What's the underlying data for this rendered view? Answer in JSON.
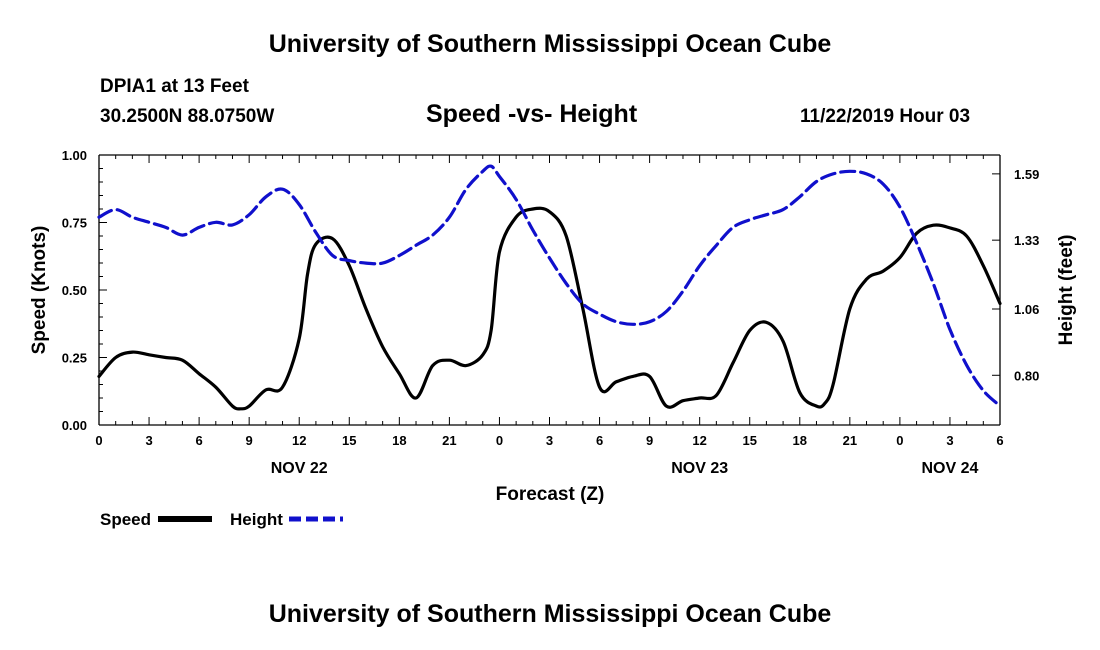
{
  "header": {
    "title_top": "University of Southern Mississippi Ocean Cube",
    "station": "DPIA1 at 13 Feet",
    "location": "30.2500N 88.0750W",
    "datetime": "11/22/2019 Hour 03",
    "title_bottom": "University of Southern Mississippi Ocean Cube"
  },
  "legend": {
    "speed_label": "Speed",
    "height_label": "Height"
  },
  "colors": {
    "speed": "#000000",
    "height": "#1010cc"
  },
  "chart_data": {
    "type": "line",
    "title": "Speed -vs- Height",
    "xlabel": "Forecast (Z)",
    "ylabel": "Speed (Knots)",
    "y2label": "Height (feet)",
    "xlim": [
      0,
      54
    ],
    "ylim": [
      0,
      1
    ],
    "y2lim": [
      0.605,
      1.664
    ],
    "x_ticks": [
      0,
      3,
      6,
      9,
      12,
      15,
      18,
      21,
      24,
      27,
      30,
      33,
      36,
      39,
      42,
      45,
      48,
      51,
      54
    ],
    "x_tick_labels": [
      "0",
      "3",
      "6",
      "9",
      "12",
      "15",
      "18",
      "21",
      "0",
      "3",
      "6",
      "9",
      "12",
      "15",
      "18",
      "21",
      "0",
      "3",
      "6"
    ],
    "y_ticks": [
      0,
      0.25,
      0.5,
      0.75,
      1.0
    ],
    "y_tick_labels": [
      "0.00",
      "0.25",
      "0.50",
      "0.75",
      "1.00"
    ],
    "y2_ticks": [
      0.8,
      1.06,
      1.33,
      1.59
    ],
    "y2_tick_labels": [
      "0.80",
      "1.06",
      "1.33",
      "1.59"
    ],
    "date_labels": [
      {
        "x": 12,
        "label": "NOV 22"
      },
      {
        "x": 36,
        "label": "NOV 23"
      },
      {
        "x": 51,
        "label": "NOV 24"
      }
    ],
    "series": [
      {
        "name": "Speed",
        "axis": "left",
        "x": [
          0,
          1,
          2,
          3,
          4,
          5,
          6,
          7,
          8,
          8.5,
          9,
          10,
          11,
          12,
          12.5,
          13,
          14,
          15,
          16,
          17,
          18,
          19,
          20,
          21,
          22,
          23,
          23.5,
          24,
          25,
          26,
          27,
          28,
          29,
          30,
          31,
          32,
          33,
          34,
          35,
          36,
          37,
          38,
          39,
          40,
          41,
          42,
          43,
          43.5,
          44,
          45,
          46,
          47,
          48,
          49,
          50,
          51,
          52,
          53,
          54
        ],
        "y": [
          0.18,
          0.25,
          0.27,
          0.26,
          0.25,
          0.24,
          0.19,
          0.14,
          0.07,
          0.06,
          0.07,
          0.13,
          0.14,
          0.32,
          0.56,
          0.67,
          0.69,
          0.59,
          0.43,
          0.29,
          0.19,
          0.1,
          0.22,
          0.24,
          0.22,
          0.26,
          0.35,
          0.64,
          0.77,
          0.8,
          0.79,
          0.7,
          0.43,
          0.14,
          0.16,
          0.18,
          0.18,
          0.07,
          0.09,
          0.1,
          0.11,
          0.23,
          0.35,
          0.38,
          0.31,
          0.12,
          0.07,
          0.08,
          0.15,
          0.43,
          0.54,
          0.57,
          0.62,
          0.71,
          0.74,
          0.73,
          0.7,
          0.59,
          0.45
        ]
      },
      {
        "name": "Height",
        "axis": "right",
        "x": [
          0,
          1,
          2,
          3,
          4,
          5,
          6,
          7,
          8,
          9,
          10,
          11,
          12,
          13,
          14,
          15,
          16,
          17,
          18,
          19,
          20,
          21,
          22,
          23,
          23.5,
          24,
          25,
          26,
          27,
          28,
          29,
          30,
          31,
          32,
          33,
          34,
          35,
          36,
          37,
          38,
          39,
          40,
          41,
          42,
          43,
          44,
          45,
          46,
          47,
          48,
          49,
          50,
          51,
          52,
          53,
          54
        ],
        "y": [
          1.42,
          1.45,
          1.42,
          1.4,
          1.38,
          1.35,
          1.38,
          1.4,
          1.39,
          1.43,
          1.5,
          1.53,
          1.47,
          1.36,
          1.27,
          1.25,
          1.24,
          1.24,
          1.27,
          1.31,
          1.35,
          1.42,
          1.53,
          1.6,
          1.62,
          1.58,
          1.49,
          1.37,
          1.26,
          1.16,
          1.08,
          1.04,
          1.01,
          1.0,
          1.01,
          1.05,
          1.13,
          1.23,
          1.31,
          1.38,
          1.41,
          1.43,
          1.45,
          1.5,
          1.56,
          1.59,
          1.6,
          1.59,
          1.55,
          1.46,
          1.32,
          1.16,
          0.98,
          0.84,
          0.74,
          0.68
        ]
      }
    ]
  }
}
